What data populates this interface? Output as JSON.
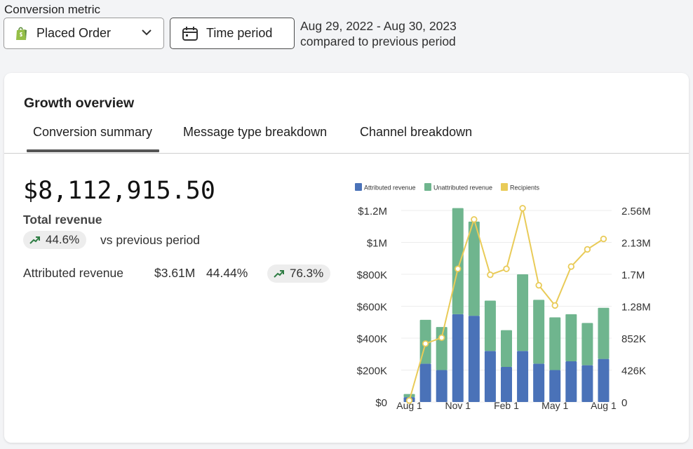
{
  "header": {
    "metric_label": "Conversion metric",
    "metric_value": "Placed Order",
    "time_button": "Time period",
    "date_range": "Aug 29, 2022 - Aug 30, 2023",
    "comparison": "compared to previous period"
  },
  "card": {
    "title": "Growth overview",
    "tabs": [
      {
        "label": "Conversion summary",
        "active": true
      },
      {
        "label": "Message type breakdown",
        "active": false
      },
      {
        "label": "Channel breakdown",
        "active": false
      }
    ],
    "total_value": "$8,112,915.50",
    "total_label": "Total revenue",
    "total_change": "44.6%",
    "vs_label": "vs previous period",
    "attributed_label": "Attributed revenue",
    "attributed_value": "$3.61M",
    "attributed_pct": "44.44%",
    "attributed_change": "76.3%"
  },
  "colors": {
    "attributed": "#4a72b8",
    "unattributed": "#6fb58e",
    "recipients": "#e9cb58",
    "positive": "#2f7d44"
  },
  "chart_data": {
    "type": "bar",
    "stacked": true,
    "legend_position": "top",
    "categories": [
      "Aug 1",
      "",
      "",
      "Nov 1",
      "",
      "",
      "Feb 1",
      "",
      "",
      "May 1",
      "",
      "",
      "Aug 1"
    ],
    "series": [
      {
        "name": "Attributed revenue",
        "axis": "left",
        "values": [
          30000,
          240000,
          200000,
          550000,
          540000,
          320000,
          220000,
          320000,
          240000,
          200000,
          255000,
          230000,
          270000
        ]
      },
      {
        "name": "Unattributed revenue",
        "axis": "left",
        "values": [
          20000,
          275000,
          270000,
          665000,
          590000,
          315000,
          230000,
          480000,
          400000,
          330000,
          295000,
          265000,
          320000
        ]
      },
      {
        "name": "Recipients",
        "type": "line",
        "axis": "right",
        "values": [
          20000,
          780000,
          860000,
          1780000,
          2440000,
          1700000,
          1780000,
          2590000,
          1560000,
          1290000,
          1810000,
          2040000,
          2180000
        ]
      }
    ],
    "y_left": {
      "min": 0,
      "max": 1200000,
      "ticks": [
        "$0",
        "$200K",
        "$400K",
        "$600K",
        "$800K",
        "$1M",
        "$1.2M"
      ]
    },
    "y_right": {
      "min": 0,
      "max": 2560000,
      "ticks": [
        "0",
        "426K",
        "852K",
        "1.28M",
        "1.7M",
        "2.13M",
        "2.56M"
      ]
    },
    "grid": true
  }
}
